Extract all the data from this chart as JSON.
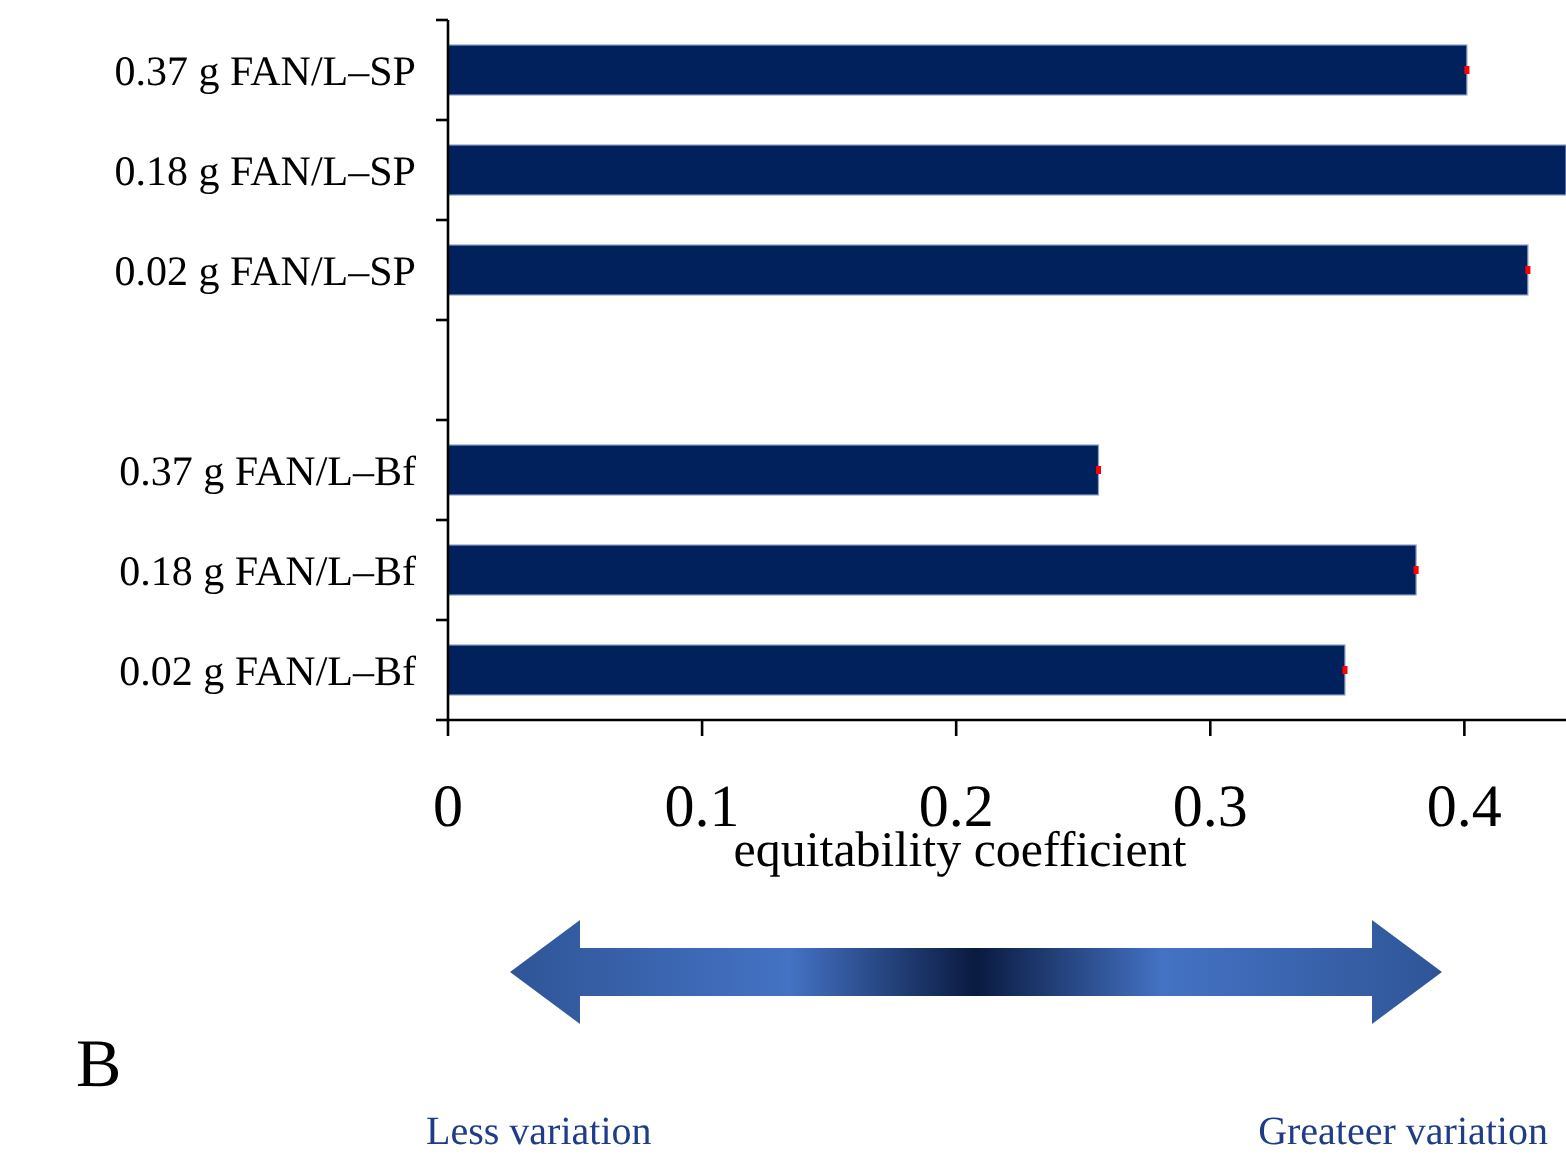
{
  "chart_data": {
    "type": "bar",
    "orientation": "horizontal",
    "categories": [
      "0.37 g FAN/L–SP",
      "0.18 g FAN/L–SP",
      "0.02 g FAN/L–SP",
      null,
      "0.37 g FAN/L–Bf",
      "0.18 g FAN/L–Bf",
      "0.02 g FAN/L–Bf"
    ],
    "values": [
      0.401,
      0.44,
      0.425,
      null,
      0.256,
      0.381,
      0.353
    ],
    "errors": [
      0.001,
      null,
      0.001,
      null,
      0.001,
      0.001,
      0.001
    ],
    "color": "#00215b",
    "xlim": [
      0,
      0.44
    ],
    "xticks": [
      0,
      0.1,
      0.2,
      0.3,
      0.4
    ],
    "xlabel": "equitability coefficient",
    "grid": false,
    "annotations": [
      "B",
      "Less variation",
      "Greateer variation"
    ]
  }
}
